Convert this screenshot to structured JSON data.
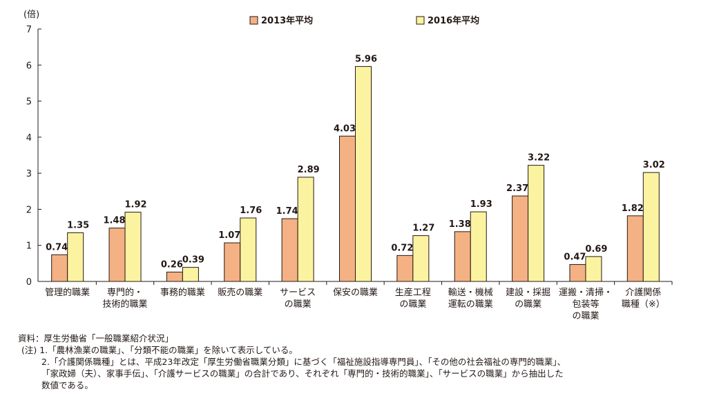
{
  "chart_data": {
    "type": "bar",
    "ylabel": "(倍)",
    "ylim": [
      0,
      7
    ],
    "yticks": [
      0,
      1,
      2,
      3,
      4,
      5,
      6,
      7
    ],
    "legend_position": "top",
    "categories": [
      [
        "管理的職業"
      ],
      [
        "専門的・",
        "技術的職業"
      ],
      [
        "事務的職業"
      ],
      [
        "販売の職業"
      ],
      [
        "サービス",
        "の職業"
      ],
      [
        "保安の職業"
      ],
      [
        "生産工程",
        "の職業"
      ],
      [
        "輸送・機械",
        "運転の職業"
      ],
      [
        "建設・採掘",
        "の職業"
      ],
      [
        "運搬・清掃・",
        "包装等",
        "の職業"
      ],
      [
        "介護関係",
        "職種（※）"
      ]
    ],
    "series": [
      {
        "name": "2013年平均",
        "color": "#f4b183",
        "values": [
          0.74,
          1.48,
          0.26,
          1.07,
          1.74,
          4.03,
          0.72,
          1.38,
          2.37,
          0.47,
          1.82
        ],
        "labels": [
          "0.74",
          "1.48",
          "0.26",
          "1.07",
          "1.74",
          "4.03",
          "0.72",
          "1.38",
          "2.37",
          "0.47",
          "1.82"
        ]
      },
      {
        "name": "2016年平均",
        "color": "#fbf3a0",
        "values": [
          1.35,
          1.92,
          0.39,
          1.76,
          2.89,
          5.96,
          1.27,
          1.93,
          3.22,
          0.69,
          3.02
        ],
        "labels": [
          "1.35",
          "1.92",
          "0.39",
          "1.76",
          "2.89",
          "5.96",
          "1.27",
          "1.93",
          "3.22",
          "0.69",
          "3.02"
        ]
      }
    ]
  },
  "notes": {
    "source": "資料：厚生労働省「一般職業紹介状況」",
    "note1": "(注) 1.「農林漁業の職業」、「分類不能の職業」を除いて表示している。",
    "note2_a": "2.「介護関係職種」とは、平成23年改定「厚生労働省職業分類」に基づく「福祉施設指導専門員」、「その他の社会福祉の専門的職業」、",
    "note2_b": "「家政婦（夫）、家事手伝」、「介護サービスの職業」の合計であり、それぞれ「専門的・技術的職業」、「サービスの職業」から抽出した",
    "note2_c": "数値である。"
  }
}
